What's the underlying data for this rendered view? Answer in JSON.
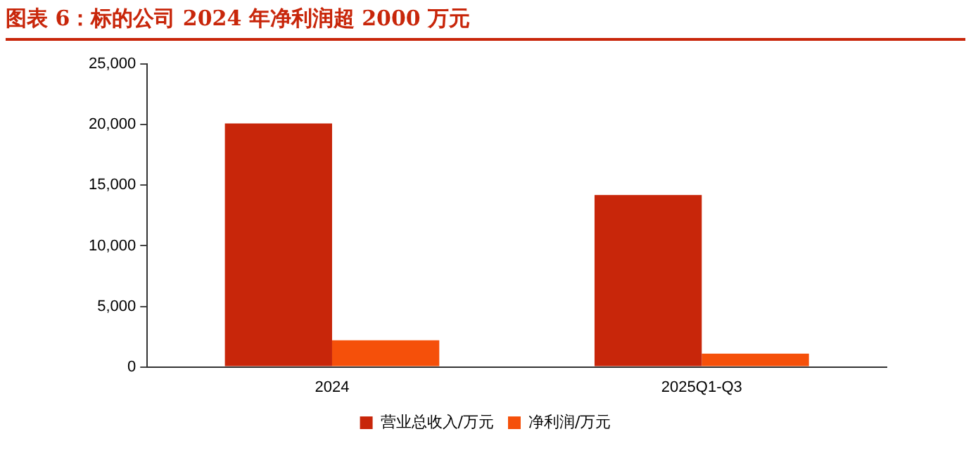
{
  "chart_data": {
    "type": "bar",
    "title": "图表 6：标的公司 2024 年净利润超 2000 万元",
    "categories": [
      "2024",
      "2025Q1-Q3"
    ],
    "series": [
      {
        "name": "营业总收入/万元",
        "color": "#c8260a",
        "values": [
          20100,
          14200
        ]
      },
      {
        "name": "净利润/万元",
        "color": "#f5500a",
        "values": [
          2200,
          1100
        ]
      }
    ],
    "ylim": [
      0,
      25000
    ],
    "yticks": [
      0,
      {
        "value": 5000,
        "label": "5,000"
      },
      {
        "value": 10000,
        "label": "10,000"
      },
      {
        "value": 15000,
        "label": "15,000"
      },
      {
        "value": 20000,
        "label": "20,000"
      },
      {
        "value": 25000,
        "label": "25,000"
      }
    ],
    "grid": false,
    "legend": "bottom"
  }
}
